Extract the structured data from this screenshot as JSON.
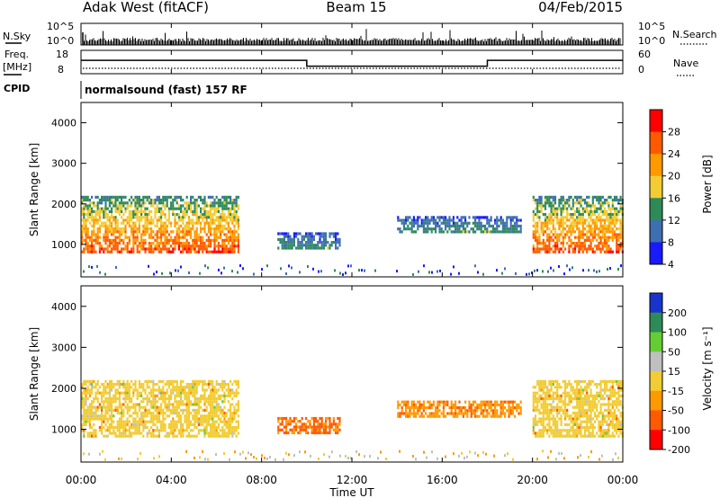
{
  "header": {
    "station": "Adak West (fitACF)",
    "beam": "Beam 15",
    "date": "04/Feb/2015"
  },
  "nsky_panel": {
    "left_label": "N.Sky",
    "right_label": "N.Search",
    "left_ticks": [
      "10^5",
      "10^0"
    ],
    "right_ticks": [
      "10^5",
      "10^0"
    ]
  },
  "freq_panel": {
    "left_label_line1": "Freq.",
    "left_label_line2": "[MHz]",
    "right_label": "Nave",
    "left_ticks": [
      "18",
      "8"
    ],
    "right_ticks": [
      "60",
      "0"
    ],
    "frequency_segments": [
      {
        "start": 0.0,
        "end": 10.0,
        "value": 14
      },
      {
        "start": 10.0,
        "end": 18.0,
        "value": 10.5
      },
      {
        "start": 18.0,
        "end": 24.0,
        "value": 14
      }
    ]
  },
  "cpid": {
    "label": "CPID",
    "value": "normalsound (fast) 157 RF"
  },
  "x_axis": {
    "label": "Time UT",
    "ticks": [
      "00:00",
      "04:00",
      "08:00",
      "12:00",
      "16:00",
      "20:00",
      "00:00"
    ]
  },
  "chart_data": [
    {
      "type": "heatmap",
      "panel": "power",
      "ylabel": "Slant Range [km]",
      "yticks": [
        "4000",
        "3000",
        "2000",
        "1000"
      ],
      "ylim": [
        200,
        4500
      ],
      "xlim": [
        0,
        24
      ],
      "colorbar_label": "Power [dB]",
      "colorbar_ticks": [
        "28",
        "24",
        "20",
        "16",
        "12",
        "8",
        "4"
      ],
      "colorbar_colors": [
        "#ff0000",
        "#ff5a00",
        "#ff9900",
        "#f2cc33",
        "#2e8b57",
        "#3e6fb0",
        "#1a1aff"
      ],
      "echo_regions": [
        {
          "t0": 0.0,
          "t1": 7.0,
          "r0": 800,
          "r1": 2200,
          "level": 26
        },
        {
          "t0": 8.7,
          "t1": 11.5,
          "r0": 900,
          "r1": 1300,
          "level": 10
        },
        {
          "t0": 14.0,
          "t1": 19.5,
          "r0": 1300,
          "r1": 1700,
          "level": 10
        },
        {
          "t0": 20.0,
          "t1": 24.0,
          "r0": 800,
          "r1": 2200,
          "level": 26
        }
      ]
    },
    {
      "type": "heatmap",
      "panel": "velocity",
      "ylabel": "Slant Range [km]",
      "yticks": [
        "4000",
        "3000",
        "2000",
        "1000"
      ],
      "ylim": [
        200,
        4500
      ],
      "xlim": [
        0,
        24
      ],
      "colorbar_label": "Velocity [m s⁻¹]",
      "colorbar_ticks": [
        "200",
        "100",
        "50",
        "15",
        "-15",
        "-50",
        "-100",
        "-200"
      ],
      "colorbar_colors": [
        "#1a33cc",
        "#2e8b57",
        "#66cc33",
        "#bfbfbf",
        "#f2cc33",
        "#ff9900",
        "#ff5a00",
        "#ff0000"
      ],
      "echo_regions": [
        {
          "t0": 0.0,
          "t1": 7.0,
          "r0": 800,
          "r1": 2200,
          "velocity": 0
        },
        {
          "t0": 8.7,
          "t1": 11.5,
          "r0": 900,
          "r1": 1300,
          "velocity": -60
        },
        {
          "t0": 14.0,
          "t1": 19.5,
          "r0": 1300,
          "r1": 1700,
          "velocity": -40
        },
        {
          "t0": 20.0,
          "t1": 24.0,
          "r0": 800,
          "r1": 2200,
          "velocity": 0
        }
      ]
    }
  ]
}
